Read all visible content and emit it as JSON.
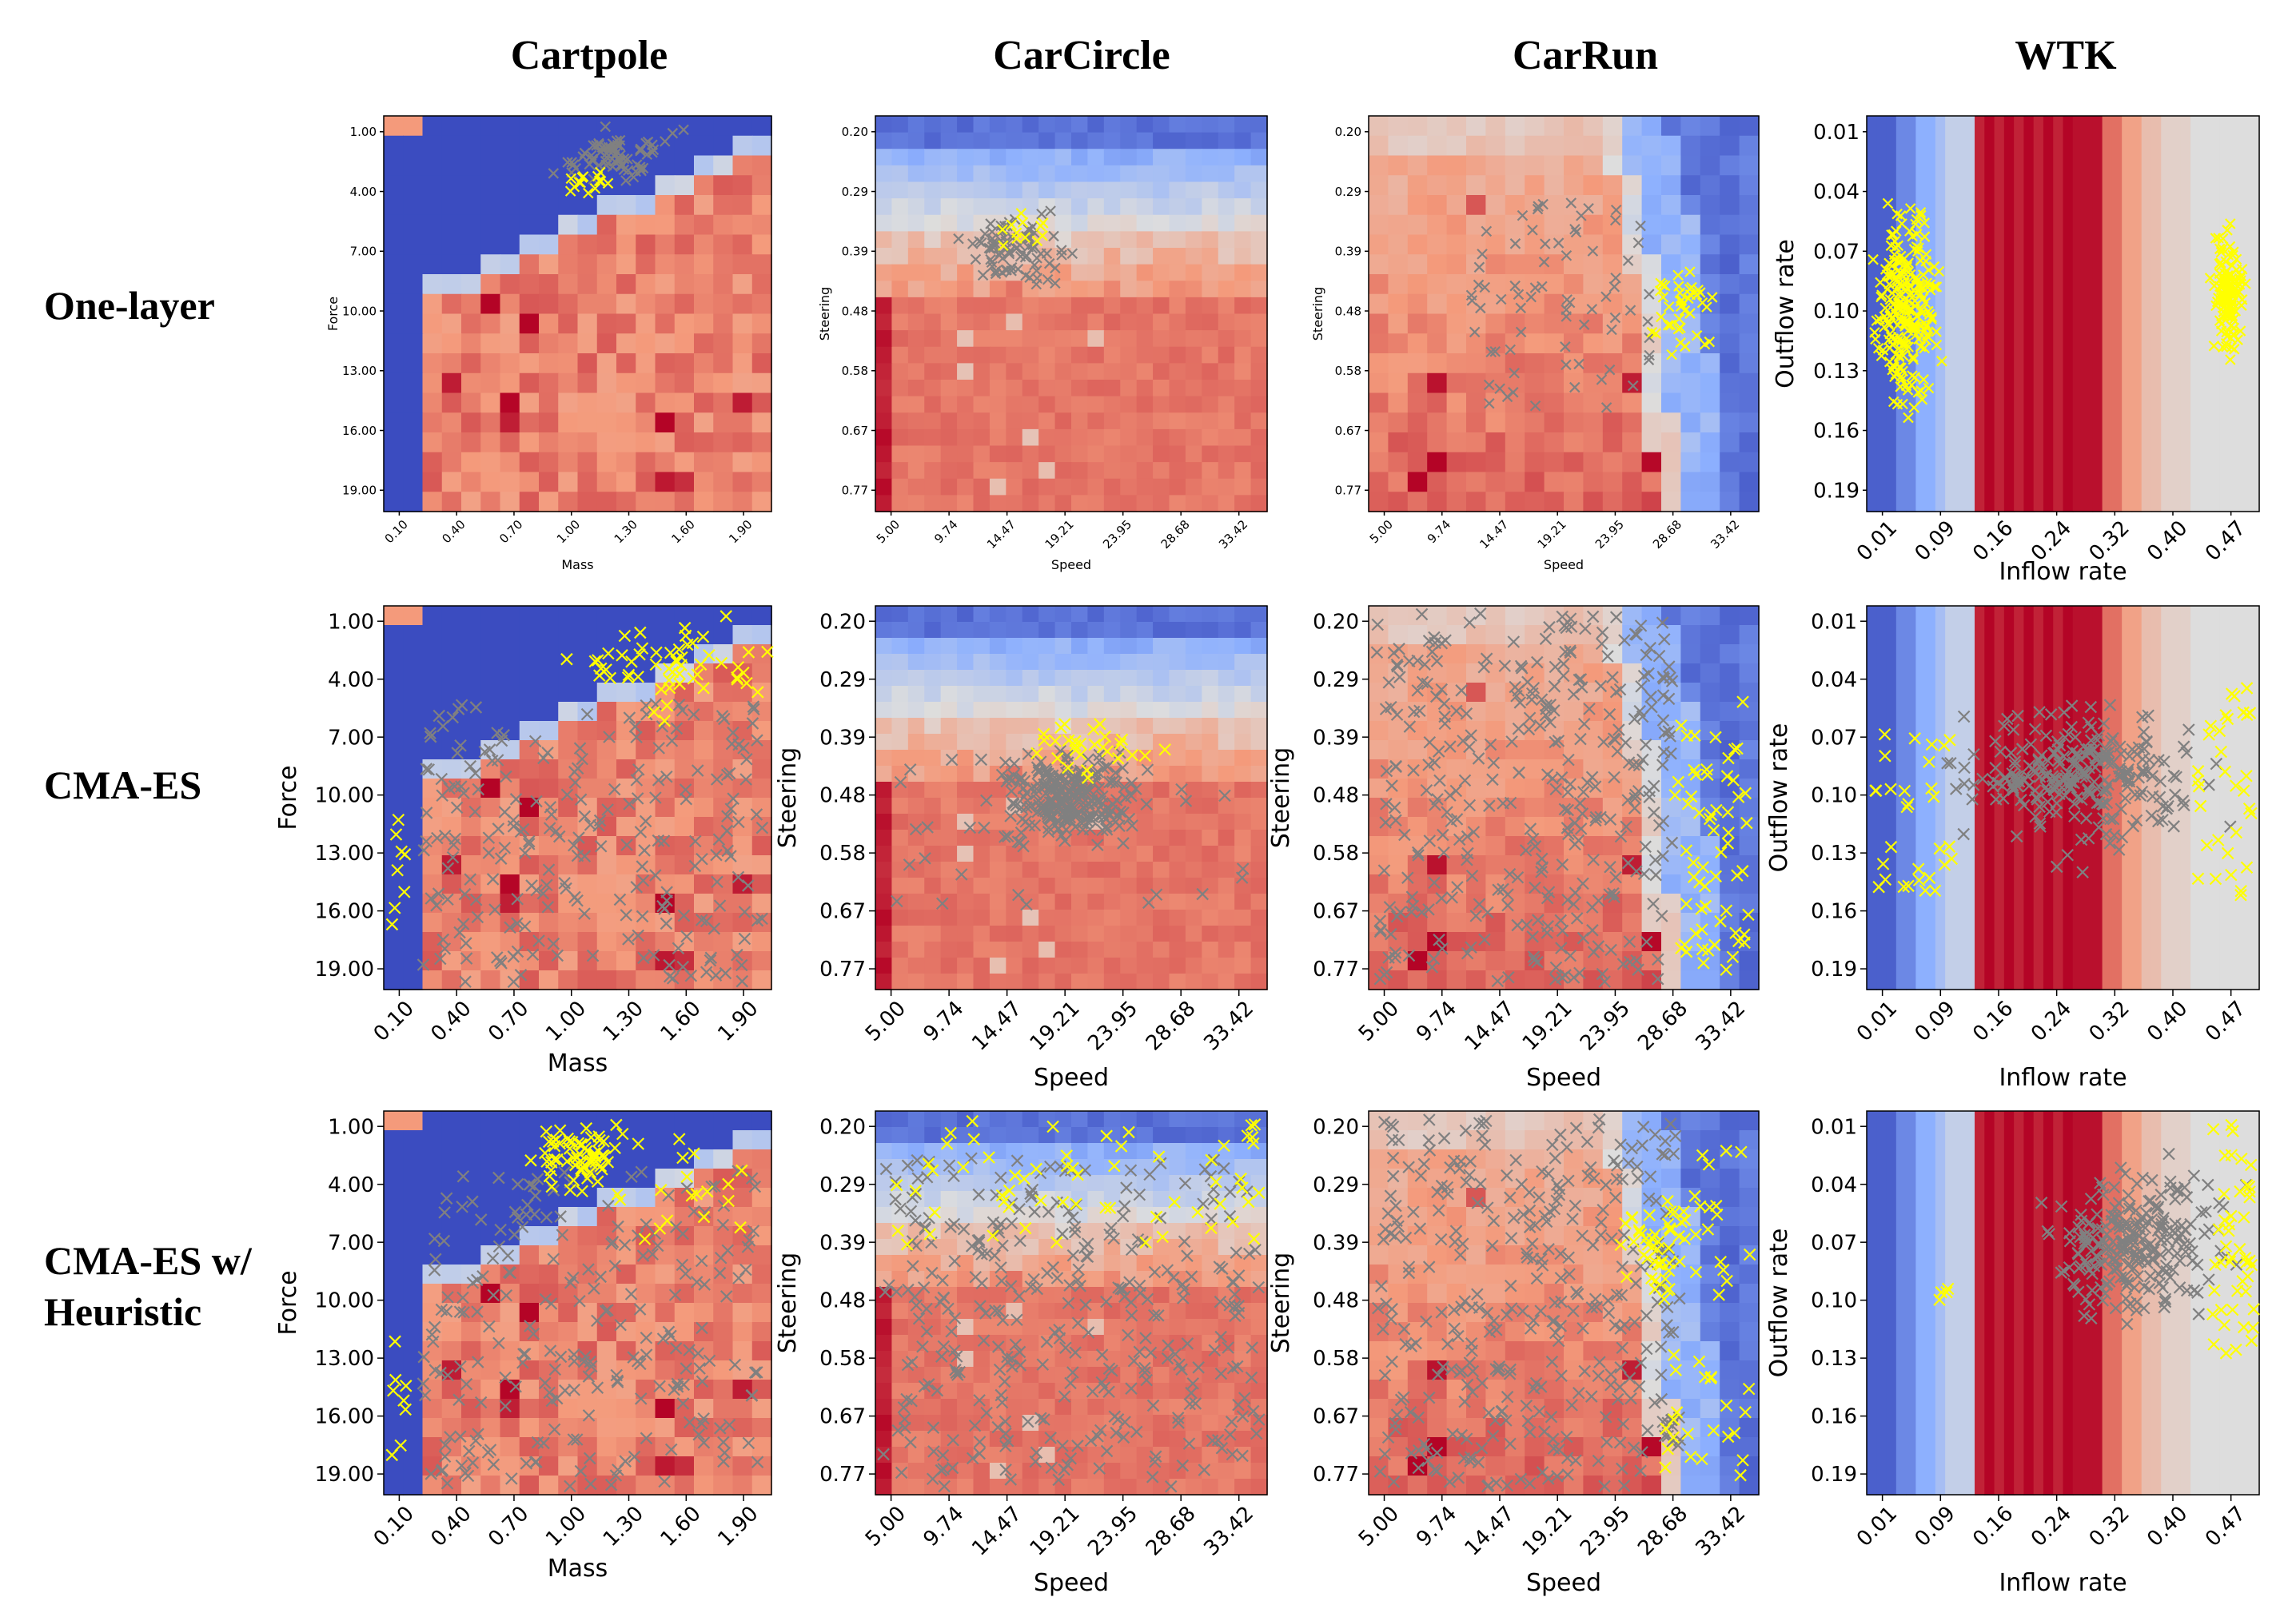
{
  "figure": {
    "columns": [
      "Cartpole",
      "CarCircle",
      "CarRun",
      "WTK"
    ],
    "rows": [
      {
        "label_lines": [
          "One-layer"
        ]
      },
      {
        "label_lines": [
          "CMA-ES"
        ]
      },
      {
        "label_lines": [
          "CMA-ES w/",
          "Heuristic"
        ]
      }
    ]
  },
  "colors": {
    "blue": "#3b4cc0",
    "light": "#dddddd",
    "red": "#b40426",
    "fail_marker": "#ffff00",
    "other_marker": "#808080"
  },
  "chart_data": [
    {
      "type": "heatmap",
      "env": "Cartpole",
      "xlabel": "Mass",
      "ylabel": "Force",
      "xticks": [
        "0.10",
        "0.40",
        "0.70",
        "1.00",
        "1.30",
        "1.60",
        "1.90"
      ],
      "yticks": [
        "1.00",
        "4.00",
        "7.00",
        "10.00",
        "13.00",
        "16.00",
        "19.00"
      ],
      "xlim": [
        0.1,
        2.0
      ],
      "ylim": [
        1,
        20
      ]
    },
    {
      "type": "heatmap",
      "env": "CarCircle",
      "xlabel": "Speed",
      "ylabel": "Steering",
      "xticks": [
        "5.00",
        "9.74",
        "14.47",
        "19.21",
        "23.95",
        "28.68",
        "33.42"
      ],
      "yticks": [
        "0.20",
        "0.29",
        "0.39",
        "0.48",
        "0.58",
        "0.67",
        "0.77"
      ],
      "xlim": [
        5,
        36
      ],
      "ylim": [
        0.2,
        0.8
      ]
    },
    {
      "type": "heatmap",
      "env": "CarRun",
      "xlabel": "Speed",
      "ylabel": "Steering",
      "xticks": [
        "5.00",
        "9.74",
        "14.47",
        "19.21",
        "23.95",
        "28.68",
        "33.42"
      ],
      "yticks": [
        "0.20",
        "0.29",
        "0.39",
        "0.48",
        "0.58",
        "0.67",
        "0.77"
      ],
      "xlim": [
        5,
        36
      ],
      "ylim": [
        0.2,
        0.8
      ]
    },
    {
      "type": "heatmap",
      "env": "WTK",
      "xlabel": "Inflow rate",
      "ylabel": "Outflow rate",
      "xticks": [
        "0.01",
        "0.09",
        "0.16",
        "0.24",
        "0.32",
        "0.40",
        "0.47"
      ],
      "yticks": [
        "0.01",
        "0.04",
        "0.07",
        "0.10",
        "0.13",
        "0.16",
        "0.19"
      ],
      "xlim": [
        0.01,
        0.5
      ],
      "ylim": [
        0.01,
        0.2
      ]
    }
  ]
}
